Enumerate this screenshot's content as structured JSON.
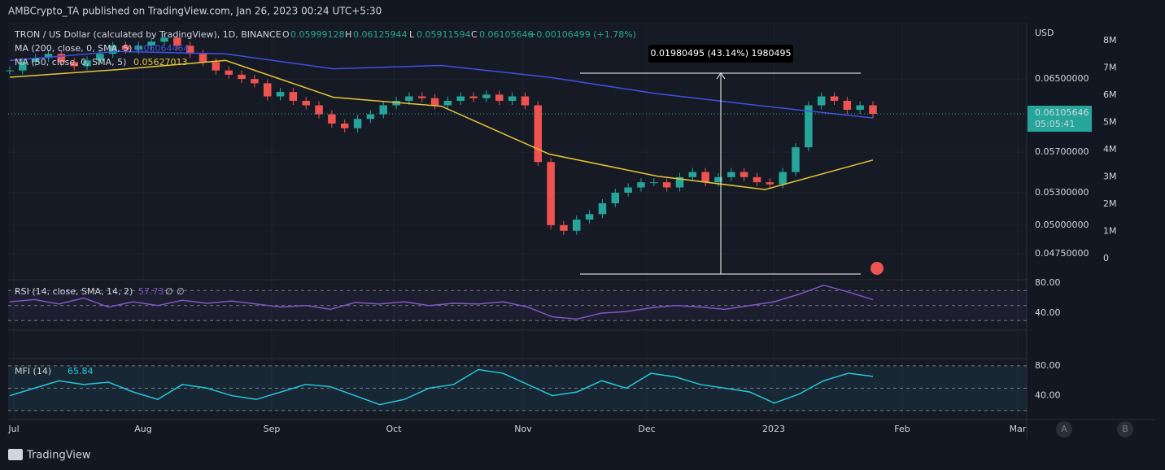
{
  "header": {
    "publisher": "AMBCrypto_TA published on TradingView.com, Jan 26, 2023 00:24 UTC+5:30"
  },
  "legend": {
    "symbol": "TRON / US Dollar (calculated by TradingView), 1D, BINANCE",
    "o": "O",
    "open": "0.05999128",
    "h": "H",
    "high": "0.06125944",
    "l": "L",
    "low": "0.05911594",
    "c": "C",
    "close": "0.06105646",
    "change": "+0.00106499 (+1.78%)"
  },
  "ma200": {
    "label": "MA (200, close, 0, SMA, 5)",
    "value_label": "0.06064464",
    "color": "#3f51e0",
    "values": [
      0.0672,
      0.0683,
      0.068,
      0.0662,
      0.0666,
      0.0652,
      0.0633,
      0.0619,
      0.0606
    ]
  },
  "ma50": {
    "label": "MA (50, close, 0, SMA, 5)",
    "value_label": "0.05627013",
    "color": "#e6c532",
    "values": [
      0.0652,
      0.0661,
      0.0672,
      0.0629,
      0.0619,
      0.0568,
      0.0546,
      0.0533,
      0.0562
    ]
  },
  "price": {
    "closes": [
      0.066,
      0.067,
      0.0675,
      0.068,
      0.067,
      0.0665,
      0.0672,
      0.068,
      0.069,
      0.0685,
      0.069,
      0.0695,
      0.07,
      0.069,
      0.068,
      0.067,
      0.066,
      0.0655,
      0.065,
      0.0645,
      0.063,
      0.0635,
      0.0625,
      0.062,
      0.061,
      0.06,
      0.0595,
      0.0605,
      0.061,
      0.062,
      0.0625,
      0.063,
      0.0628,
      0.062,
      0.0625,
      0.063,
      0.0628,
      0.0632,
      0.0625,
      0.063,
      0.062,
      0.056,
      0.05,
      0.0495,
      0.0505,
      0.051,
      0.052,
      0.053,
      0.0535,
      0.054,
      0.054,
      0.0535,
      0.0545,
      0.055,
      0.054,
      0.0545,
      0.055,
      0.0545,
      0.054,
      0.0538,
      0.055,
      0.0575,
      0.062,
      0.063,
      0.0625,
      0.0615,
      0.062,
      0.06105646
    ],
    "up_color": "#26a69a",
    "down_color": "#ef5350",
    "ylim": [
      0.0454,
      0.0719
    ],
    "log": true,
    "yticks": [
      {
        "value": 0.065,
        "label": "0.06500000"
      },
      {
        "value": 0.057,
        "label": "0.05700000"
      },
      {
        "value": 0.053,
        "label": "0.05300000"
      },
      {
        "value": 0.05,
        "label": "0.05000000"
      },
      {
        "value": 0.0475,
        "label": "0.04750000"
      }
    ],
    "currency": "USD",
    "last_price": "0.06105646",
    "countdown": "05:05:41",
    "measure": "0.01980495 (43.14%) 1980495"
  },
  "volume_axis": [
    "8M",
    "7M",
    "6M",
    "5M",
    "4M",
    "3M",
    "2M",
    "1M",
    "0"
  ],
  "rsi": {
    "label": "RSI (14, close, SMA, 14, 2)",
    "value_label": "57.73",
    "na1": "∅",
    "na2": "∅",
    "color": "#7e57c2",
    "ylim": [
      18.4,
      83.2
    ],
    "yticks": [
      {
        "value": 80,
        "label": "80.00"
      },
      {
        "value": 40,
        "label": "40.00"
      }
    ],
    "values": [
      55,
      58,
      52,
      60,
      48,
      55,
      50,
      57,
      53,
      56,
      52,
      48,
      50,
      45,
      54,
      52,
      55,
      50,
      53,
      52,
      55,
      48,
      35,
      32,
      40,
      42,
      47,
      50,
      48,
      45,
      50,
      55,
      65,
      77,
      68,
      57.73
    ]
  },
  "mfi": {
    "label": "MFI (14)",
    "value_label": "65.84",
    "color": "#26c6da",
    "ylim": [
      9,
      88.6
    ],
    "yticks": [
      {
        "value": 80,
        "label": "80.00"
      },
      {
        "value": 40,
        "label": "40.00"
      }
    ],
    "values": [
      40,
      50,
      60,
      55,
      58,
      45,
      35,
      55,
      50,
      40,
      35,
      45,
      55,
      52,
      40,
      28,
      35,
      50,
      55,
      75,
      70,
      55,
      40,
      45,
      60,
      50,
      70,
      65,
      55,
      50,
      45,
      30,
      42,
      60,
      70,
      65.84
    ]
  },
  "time_axis": [
    "Jul",
    "Aug",
    "Sep",
    "Oct",
    "Nov",
    "Dec",
    "2023",
    "Feb",
    "Mar"
  ],
  "scale_buttons": [
    "A",
    "B"
  ],
  "footer": {
    "brand": "TradingView"
  }
}
